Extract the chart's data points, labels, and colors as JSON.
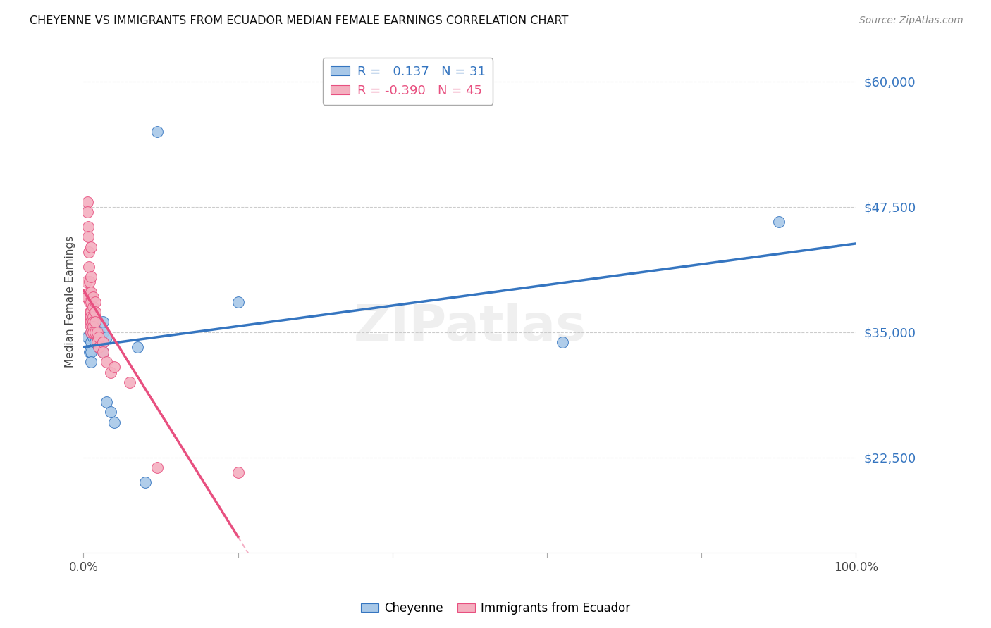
{
  "title": "CHEYENNE VS IMMIGRANTS FROM ECUADOR MEDIAN FEMALE EARNINGS CORRELATION CHART",
  "source": "Source: ZipAtlas.com",
  "ylabel": "Median Female Earnings",
  "ytick_labels": [
    "$22,500",
    "$35,000",
    "$47,500",
    "$60,000"
  ],
  "ytick_values": [
    22500,
    35000,
    47500,
    60000
  ],
  "ymin": 13000,
  "ymax": 63000,
  "xmin": 0.0,
  "xmax": 1.0,
  "legend_blue_R": "0.137",
  "legend_blue_N": "31",
  "legend_pink_R": "-0.390",
  "legend_pink_N": "45",
  "watermark": "ZIPatlas",
  "blue_color": "#a8c8e8",
  "pink_color": "#f4b0c0",
  "line_blue": "#3575c0",
  "line_pink": "#e85080",
  "blue_scatter": [
    [
      0.005,
      34500
    ],
    [
      0.008,
      33000
    ],
    [
      0.01,
      35000
    ],
    [
      0.01,
      34000
    ],
    [
      0.01,
      33000
    ],
    [
      0.01,
      32000
    ],
    [
      0.012,
      35500
    ],
    [
      0.012,
      34500
    ],
    [
      0.015,
      36000
    ],
    [
      0.015,
      35500
    ],
    [
      0.015,
      35000
    ],
    [
      0.015,
      34000
    ],
    [
      0.018,
      35000
    ],
    [
      0.018,
      34000
    ],
    [
      0.02,
      35000
    ],
    [
      0.02,
      33500
    ],
    [
      0.022,
      34500
    ],
    [
      0.025,
      36000
    ],
    [
      0.025,
      35000
    ],
    [
      0.025,
      34000
    ],
    [
      0.025,
      33000
    ],
    [
      0.03,
      34500
    ],
    [
      0.03,
      28000
    ],
    [
      0.035,
      27000
    ],
    [
      0.04,
      26000
    ],
    [
      0.07,
      33500
    ],
    [
      0.08,
      20000
    ],
    [
      0.095,
      55000
    ],
    [
      0.2,
      38000
    ],
    [
      0.62,
      34000
    ],
    [
      0.9,
      46000
    ]
  ],
  "pink_scatter": [
    [
      0.003,
      40000
    ],
    [
      0.004,
      38500
    ],
    [
      0.005,
      48000
    ],
    [
      0.005,
      47000
    ],
    [
      0.006,
      45500
    ],
    [
      0.006,
      44500
    ],
    [
      0.007,
      43000
    ],
    [
      0.007,
      41500
    ],
    [
      0.008,
      40000
    ],
    [
      0.008,
      39000
    ],
    [
      0.008,
      38000
    ],
    [
      0.009,
      37000
    ],
    [
      0.009,
      36500
    ],
    [
      0.009,
      36000
    ],
    [
      0.01,
      43500
    ],
    [
      0.01,
      40500
    ],
    [
      0.01,
      39000
    ],
    [
      0.01,
      38000
    ],
    [
      0.01,
      37000
    ],
    [
      0.01,
      36500
    ],
    [
      0.01,
      36000
    ],
    [
      0.01,
      35500
    ],
    [
      0.01,
      35000
    ],
    [
      0.012,
      38500
    ],
    [
      0.012,
      37500
    ],
    [
      0.012,
      36500
    ],
    [
      0.012,
      36000
    ],
    [
      0.012,
      35500
    ],
    [
      0.012,
      35000
    ],
    [
      0.015,
      38000
    ],
    [
      0.015,
      37000
    ],
    [
      0.015,
      36000
    ],
    [
      0.015,
      35000
    ],
    [
      0.018,
      35000
    ],
    [
      0.018,
      34000
    ],
    [
      0.02,
      34500
    ],
    [
      0.02,
      33500
    ],
    [
      0.025,
      34000
    ],
    [
      0.025,
      33000
    ],
    [
      0.03,
      32000
    ],
    [
      0.035,
      31000
    ],
    [
      0.04,
      31500
    ],
    [
      0.06,
      30000
    ],
    [
      0.095,
      21500
    ],
    [
      0.2,
      21000
    ]
  ]
}
